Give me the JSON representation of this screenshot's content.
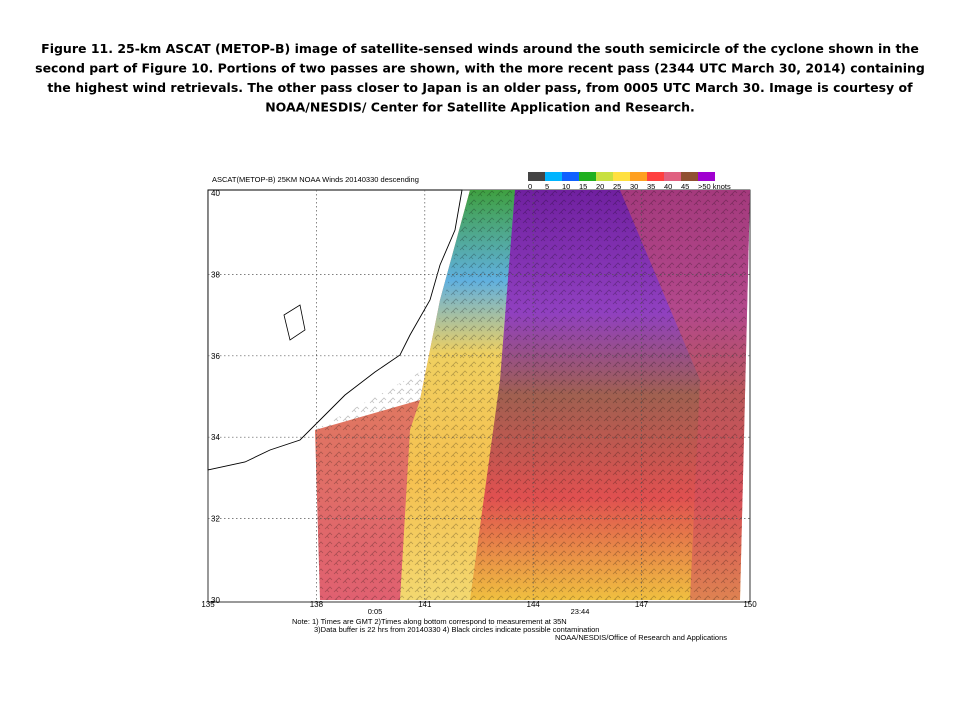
{
  "caption": [
    "Figure 11.  25-km ASCAT (METOP-B) image of satellite-sensed winds around the south semicircle of the cyclone shown in the",
    "second part of Figure 10.  Portions of two passes are shown, with the more recent pass (2344 UTC March 30, 2014) containing",
    "the highest wind retrievals.  The other pass closer to Japan is an older pass, from 0005 UTC March 30.  Image is courtesy of",
    "NOAA/NESDIS/ Center for Satellite Application and Research."
  ],
  "map": {
    "title": "ASCAT(METOP-B) 25KM NOAA Winds 20140330 descending",
    "legend": {
      "labels": [
        "0",
        "5",
        "10",
        "15",
        "20",
        "25",
        "30",
        "35",
        "40",
        "45",
        ">50 knots"
      ],
      "colors": [
        "#444444",
        "#00b4ff",
        "#1060ff",
        "#20b020",
        "#c8e040",
        "#ffe040",
        "#ffa020",
        "#ff4040",
        "#e06080",
        "#905030",
        "#a000d0"
      ]
    },
    "latitude_labels": [
      "40",
      "38",
      "36",
      "34",
      "32",
      "30"
    ],
    "longitude_labels": [
      "135",
      "138",
      "141",
      "144",
      "147",
      "150"
    ],
    "pass_times": [
      "0:05",
      "23:44"
    ],
    "notes": [
      "Note: 1) Times are GMT 2)Times along bottom correspond to measurement at 35N",
      "3)Data buffer is 22 hrs from 20140330 4) Black circles indicate possible contamination"
    ],
    "credit": "NOAA/NESDIS/Office of Research and Applications"
  }
}
